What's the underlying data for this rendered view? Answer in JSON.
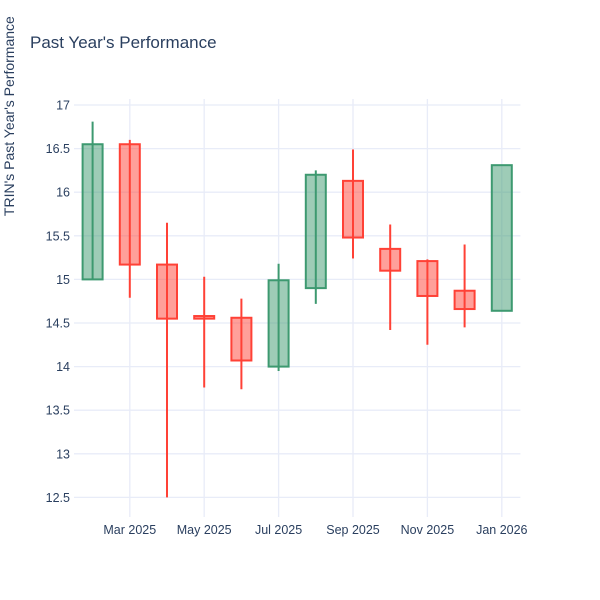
{
  "page": {
    "title": "Past Year's Performance",
    "background_color": "#ffffff",
    "title_color": "#2a3f5f"
  },
  "chart_data": {
    "type": "candlestick",
    "title": "Past Year's Performance",
    "xlabel": "",
    "ylabel": "TRIN's Past Year's Performance",
    "ylim": [
      12.3,
      17.07
    ],
    "grid": true,
    "legend": "none",
    "yticks": [
      17,
      16.5,
      16,
      15.5,
      15,
      14.5,
      14,
      13.5,
      13,
      12.5
    ],
    "xticks": [
      {
        "label": "Mar 2025",
        "month_index": 1
      },
      {
        "label": "May 2025",
        "month_index": 3
      },
      {
        "label": "Jul 2025",
        "month_index": 5
      },
      {
        "label": "Sep 2025",
        "month_index": 7
      },
      {
        "label": "Nov 2025",
        "month_index": 9
      },
      {
        "label": "Jan 2026",
        "month_index": 11
      }
    ],
    "candles": [
      {
        "month": "Feb 2025",
        "open": 15.0,
        "high": 16.81,
        "low": 15.0,
        "close": 16.55,
        "direction": "increasing"
      },
      {
        "month": "Mar 2025",
        "open": 16.55,
        "high": 16.6,
        "low": 14.79,
        "close": 15.17,
        "direction": "decreasing"
      },
      {
        "month": "Apr 2025",
        "open": 15.17,
        "high": 15.65,
        "low": 12.5,
        "close": 14.55,
        "direction": "decreasing"
      },
      {
        "month": "May 2025",
        "open": 14.58,
        "high": 15.03,
        "low": 13.76,
        "close": 14.55,
        "direction": "decreasing"
      },
      {
        "month": "Jun 2025",
        "open": 14.56,
        "high": 14.78,
        "low": 13.74,
        "close": 14.07,
        "direction": "decreasing"
      },
      {
        "month": "Jul 2025",
        "open": 14.0,
        "high": 15.18,
        "low": 13.95,
        "close": 14.99,
        "direction": "increasing"
      },
      {
        "month": "Aug 2025",
        "open": 14.9,
        "high": 16.25,
        "low": 14.72,
        "close": 16.2,
        "direction": "increasing"
      },
      {
        "month": "Sep 2025",
        "open": 16.13,
        "high": 16.49,
        "low": 15.24,
        "close": 15.48,
        "direction": "decreasing"
      },
      {
        "month": "Oct 2025",
        "open": 15.35,
        "high": 15.63,
        "low": 14.42,
        "close": 15.1,
        "direction": "decreasing"
      },
      {
        "month": "Nov 2025",
        "open": 15.21,
        "high": 15.23,
        "low": 14.25,
        "close": 14.81,
        "direction": "decreasing"
      },
      {
        "month": "Dec 2025",
        "open": 14.87,
        "high": 15.4,
        "low": 14.45,
        "close": 14.66,
        "direction": "decreasing"
      },
      {
        "month": "Jan 2026",
        "open": 14.64,
        "high": 16.31,
        "low": 14.64,
        "close": 16.31,
        "direction": "increasing"
      }
    ],
    "colors": {
      "increasing_line": "#3D9970",
      "increasing_fill": "rgba(61,153,112,0.5)",
      "decreasing_line": "#FF4136",
      "decreasing_fill": "rgba(255,65,54,0.5)",
      "grid": "#E8ECF8",
      "tick_text": "#2a3f5f",
      "plot_background": "#ffffff"
    }
  }
}
